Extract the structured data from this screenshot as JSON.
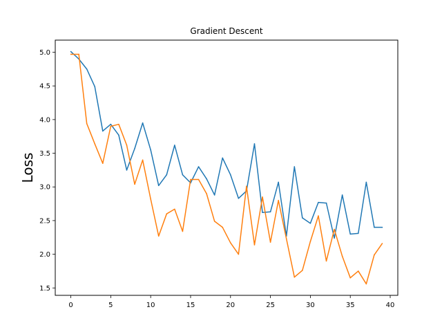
{
  "chart_data": {
    "type": "line",
    "title": "Gradient Descent",
    "xlabel": "",
    "ylabel": "Loss",
    "xlim": [
      -1.95,
      40.95
    ],
    "ylim": [
      1.39,
      5.18
    ],
    "xticks": [
      0,
      5,
      10,
      15,
      20,
      25,
      30,
      35,
      40
    ],
    "yticks": [
      1.5,
      2.0,
      2.5,
      3.0,
      3.5,
      4.0,
      4.5,
      5.0
    ],
    "ytick_labels": [
      "1.5",
      "2.0",
      "2.5",
      "3.0",
      "3.5",
      "4.0",
      "4.5",
      "5.0"
    ],
    "grid": false,
    "x": [
      0,
      1,
      2,
      3,
      4,
      5,
      6,
      7,
      8,
      9,
      10,
      11,
      12,
      13,
      14,
      15,
      16,
      17,
      18,
      19,
      20,
      21,
      22,
      23,
      24,
      25,
      26,
      27,
      28,
      29,
      30,
      31,
      32,
      33,
      34,
      35,
      36,
      37,
      38,
      39
    ],
    "series": [
      {
        "color": "#1f77b4",
        "values": [
          5.01,
          4.9,
          4.75,
          4.49,
          3.83,
          3.93,
          3.77,
          3.25,
          3.57,
          3.95,
          3.55,
          3.02,
          3.18,
          3.62,
          3.18,
          3.06,
          3.3,
          3.12,
          2.88,
          3.43,
          3.18,
          2.83,
          2.94,
          3.64,
          2.62,
          2.63,
          3.07,
          2.27,
          3.3,
          2.54,
          2.46,
          2.77,
          2.76,
          2.24,
          2.88,
          2.3,
          2.31,
          3.07,
          2.4,
          2.4
        ]
      },
      {
        "color": "#ff7f0e",
        "values": [
          4.97,
          4.97,
          3.94,
          3.64,
          3.35,
          3.9,
          3.93,
          3.62,
          3.04,
          3.4,
          2.82,
          2.27,
          2.6,
          2.67,
          2.34,
          3.11,
          3.11,
          2.9,
          2.49,
          2.4,
          2.17,
          2.0,
          3.01,
          2.14,
          2.85,
          2.18,
          2.8,
          2.23,
          1.66,
          1.76,
          2.19,
          2.57,
          1.9,
          2.37,
          1.97,
          1.65,
          1.75,
          1.56,
          1.99,
          2.16
        ]
      }
    ]
  }
}
